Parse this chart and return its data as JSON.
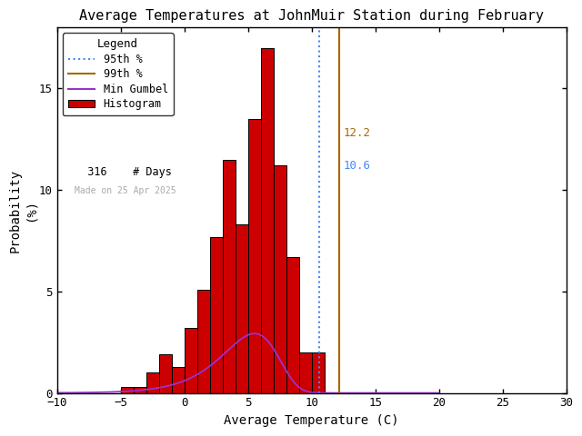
{
  "title": "Average Temperatures at JohnMuir Station during February",
  "xlabel": "Average Temperature (C)",
  "ylabel": "Probability\n(%)",
  "xlim": [
    -10,
    30
  ],
  "ylim": [
    0,
    18
  ],
  "bar_left_edges": [
    -8,
    -7,
    -6,
    -5,
    -4,
    -3,
    -2,
    -1,
    0,
    1,
    2,
    3,
    4,
    5,
    6,
    7,
    8,
    9,
    10,
    11,
    12,
    13
  ],
  "bar_heights": [
    0.0,
    0.0,
    0.0,
    0.3,
    0.3,
    1.0,
    1.9,
    1.3,
    3.2,
    5.1,
    7.7,
    11.5,
    8.3,
    13.5,
    17.0,
    11.2,
    6.7,
    2.0,
    2.0,
    0.0,
    0.0,
    0.0
  ],
  "bar_color": "#cc0000",
  "bar_edgecolor": "#000000",
  "gumbel_mu": 5.5,
  "gumbel_beta": 2.2,
  "gumbel_scale": 17.5,
  "p95_value": 10.6,
  "p99_value": 12.2,
  "p95_color": "#4488ff",
  "p99_color": "#aa6600",
  "p95_label": "10.6",
  "p99_label": "12.2",
  "n_days": 316,
  "made_on_text": "Made on 25 Apr 2025",
  "legend_title": "Legend",
  "bg_color": "#ffffff",
  "xticks": [
    -10,
    -5,
    0,
    5,
    10,
    15,
    20,
    25,
    30
  ],
  "yticks": [
    0,
    5,
    10,
    15
  ],
  "gumbel_color": "#9933cc",
  "bar_width": 1
}
